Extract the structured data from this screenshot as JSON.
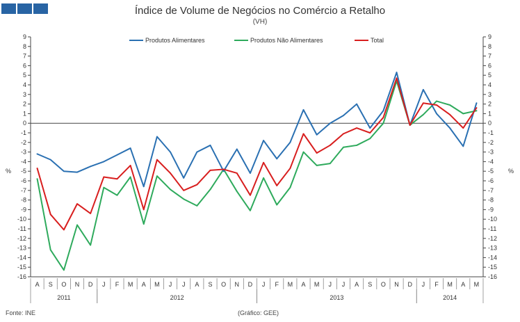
{
  "header": {
    "title": "Índice de Volume de Negócios no Comércio a Retalho",
    "subtitle": "(VH)"
  },
  "footer": {
    "source": "Fonte: INE",
    "credit": "(Gráfico: GEE)"
  },
  "colors": {
    "brand": "#2864a4",
    "alimentares": "#2a70b2",
    "nao_alimentares": "#2eaa5c",
    "total": "#d81e1e",
    "axis": "#444444"
  },
  "chart_data": {
    "type": "line",
    "title": "Índice de Volume de Negócios no Comércio a Retalho",
    "subtitle": "(VH)",
    "ylabel_left": "%",
    "ylabel_right": "%",
    "ylim": [
      -16,
      9
    ],
    "yticks": [
      9,
      8,
      7,
      6,
      5,
      4,
      3,
      2,
      1,
      0,
      -1,
      -2,
      -3,
      -4,
      -5,
      -6,
      -7,
      -8,
      -9,
      -10,
      -11,
      -12,
      -13,
      -14,
      -15,
      -16
    ],
    "categories": [
      "A",
      "S",
      "O",
      "N",
      "D",
      "J",
      "F",
      "M",
      "A",
      "M",
      "J",
      "J",
      "A",
      "S",
      "O",
      "N",
      "D",
      "J",
      "F",
      "M",
      "A",
      "M",
      "J",
      "J",
      "A",
      "S",
      "O",
      "N",
      "D",
      "J",
      "F",
      "M",
      "A",
      "M"
    ],
    "years": [
      {
        "label": "2011",
        "start": 0,
        "count": 5
      },
      {
        "label": "2012",
        "start": 5,
        "count": 12
      },
      {
        "label": "2013",
        "start": 17,
        "count": 12
      },
      {
        "label": "2014",
        "start": 29,
        "count": 5
      }
    ],
    "legend_position": "top-center",
    "series": [
      {
        "name": "Produtos Alimentares",
        "color": "#2a70b2",
        "values": [
          -3.2,
          -3.8,
          -5.0,
          -5.1,
          -4.5,
          -4.0,
          -3.3,
          -2.6,
          -6.6,
          -1.4,
          -3.0,
          -5.7,
          -3.0,
          -2.3,
          -5.0,
          -2.7,
          -5.2,
          -1.8,
          -3.7,
          -2.0,
          1.4,
          -1.2,
          0.0,
          0.8,
          2.0,
          -0.5,
          1.3,
          5.3,
          -0.2,
          3.5,
          1.0,
          -0.5,
          -2.4,
          2.1
        ]
      },
      {
        "name": "Produtos Não Alimentares",
        "color": "#2eaa5c",
        "values": [
          -5.8,
          -13.2,
          -15.3,
          -10.6,
          -12.7,
          -6.7,
          -7.5,
          -5.6,
          -10.5,
          -5.5,
          -6.9,
          -7.9,
          -8.6,
          -6.9,
          -4.8,
          -7.1,
          -9.1,
          -5.7,
          -8.5,
          -6.7,
          -3.0,
          -4.4,
          -4.2,
          -2.5,
          -2.3,
          -1.6,
          0.0,
          4.4,
          -0.2,
          0.9,
          2.3,
          1.9,
          1.0,
          1.3
        ]
      },
      {
        "name": "Total",
        "color": "#d81e1e",
        "values": [
          -4.7,
          -9.5,
          -11.1,
          -8.4,
          -9.4,
          -5.6,
          -5.8,
          -4.4,
          -9.0,
          -3.8,
          -5.2,
          -7.0,
          -6.4,
          -4.9,
          -4.8,
          -5.2,
          -7.5,
          -4.1,
          -6.5,
          -4.7,
          -1.1,
          -3.1,
          -2.3,
          -1.1,
          -0.5,
          -1.0,
          0.6,
          4.7,
          -0.2,
          2.1,
          1.9,
          0.9,
          -0.5,
          1.6
        ]
      }
    ]
  }
}
